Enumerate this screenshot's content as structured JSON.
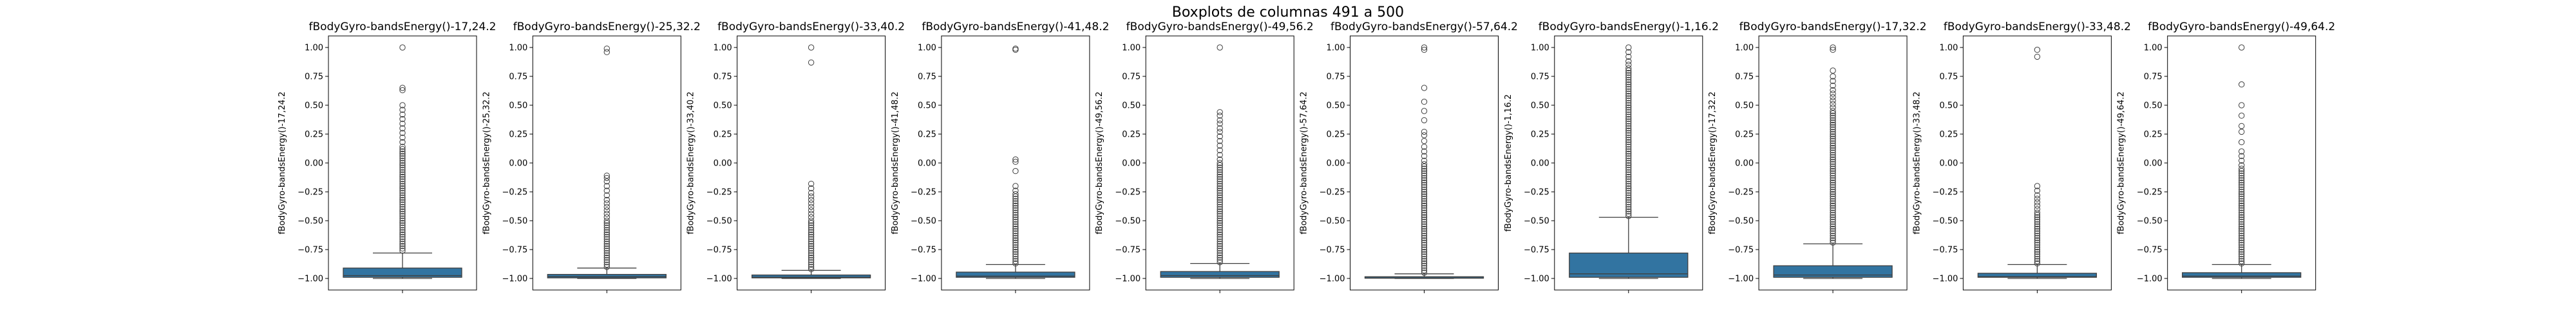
{
  "chart_data": {
    "type": "boxplot",
    "suptitle": "Boxplots de columnas 491 a 500",
    "box_color": "#3274a1",
    "yticks": [
      "1.00",
      "0.75",
      "0.50",
      "0.25",
      "0.00",
      "−0.25",
      "−0.50",
      "−0.75",
      "−1.00"
    ],
    "ytick_values": [
      1.0,
      0.75,
      0.5,
      0.25,
      0.0,
      -0.25,
      -0.5,
      -0.75,
      -1.0
    ],
    "ylim": [
      -1.1,
      1.1
    ],
    "panels": [
      {
        "title": "fBodyGyro-bandsEnergy()-17,24.2",
        "ylabel": "fBodyGyro-bandsEnergy()-17,24.2",
        "whisker_low": -1.0,
        "q1": -0.99,
        "median": -0.975,
        "q3": -0.91,
        "whisker_high": -0.78,
        "outliers": [
          -0.76,
          -0.74,
          -0.72,
          -0.7,
          -0.68,
          -0.66,
          -0.64,
          -0.62,
          -0.6,
          -0.58,
          -0.56,
          -0.54,
          -0.52,
          -0.5,
          -0.48,
          -0.46,
          -0.44,
          -0.42,
          -0.4,
          -0.38,
          -0.36,
          -0.34,
          -0.32,
          -0.3,
          -0.28,
          -0.26,
          -0.24,
          -0.22,
          -0.2,
          -0.18,
          -0.16,
          -0.14,
          -0.12,
          -0.1,
          -0.08,
          -0.06,
          -0.04,
          -0.02,
          0.0,
          0.02,
          0.04,
          0.06,
          0.08,
          0.1,
          0.12,
          0.14,
          0.18,
          0.22,
          0.26,
          0.3,
          0.34,
          0.38,
          0.42,
          0.46,
          0.5,
          0.63,
          0.65,
          1.0
        ]
      },
      {
        "title": "fBodyGyro-bandsEnergy()-25,32.2",
        "ylabel": "fBodyGyro-bandsEnergy()-25,32.2",
        "whisker_low": -1.0,
        "q1": -0.995,
        "median": -0.985,
        "q3": -0.965,
        "whisker_high": -0.91,
        "outliers": [
          -0.9,
          -0.88,
          -0.86,
          -0.84,
          -0.82,
          -0.8,
          -0.78,
          -0.76,
          -0.74,
          -0.72,
          -0.7,
          -0.68,
          -0.66,
          -0.64,
          -0.62,
          -0.6,
          -0.58,
          -0.56,
          -0.54,
          -0.52,
          -0.5,
          -0.47,
          -0.44,
          -0.41,
          -0.38,
          -0.35,
          -0.32,
          -0.28,
          -0.24,
          -0.2,
          -0.16,
          -0.13,
          -0.11,
          0.96,
          0.99
        ]
      },
      {
        "title": "fBodyGyro-bandsEnergy()-33,40.2",
        "ylabel": "fBodyGyro-bandsEnergy()-33,40.2",
        "whisker_low": -1.0,
        "q1": -0.995,
        "median": -0.99,
        "q3": -0.97,
        "whisker_high": -0.93,
        "outliers": [
          -0.92,
          -0.9,
          -0.88,
          -0.86,
          -0.84,
          -0.82,
          -0.8,
          -0.78,
          -0.76,
          -0.74,
          -0.72,
          -0.7,
          -0.68,
          -0.66,
          -0.64,
          -0.62,
          -0.6,
          -0.58,
          -0.56,
          -0.54,
          -0.52,
          -0.5,
          -0.47,
          -0.44,
          -0.41,
          -0.38,
          -0.35,
          -0.32,
          -0.29,
          -0.26,
          -0.22,
          -0.18,
          0.87,
          1.0
        ]
      },
      {
        "title": "fBodyGyro-bandsEnergy()-41,48.2",
        "ylabel": "fBodyGyro-bandsEnergy()-41,48.2",
        "whisker_low": -1.0,
        "q1": -0.99,
        "median": -0.98,
        "q3": -0.945,
        "whisker_high": -0.88,
        "outliers": [
          -0.87,
          -0.85,
          -0.83,
          -0.81,
          -0.79,
          -0.77,
          -0.75,
          -0.73,
          -0.71,
          -0.69,
          -0.67,
          -0.65,
          -0.63,
          -0.61,
          -0.59,
          -0.57,
          -0.55,
          -0.53,
          -0.51,
          -0.49,
          -0.47,
          -0.45,
          -0.43,
          -0.41,
          -0.39,
          -0.37,
          -0.35,
          -0.33,
          -0.31,
          -0.29,
          -0.27,
          -0.24,
          -0.2,
          -0.07,
          0.01,
          0.03,
          0.98,
          0.99
        ]
      },
      {
        "title": "fBodyGyro-bandsEnergy()-49,56.2",
        "ylabel": "fBodyGyro-bandsEnergy()-49,56.2",
        "whisker_low": -1.0,
        "q1": -0.99,
        "median": -0.975,
        "q3": -0.94,
        "whisker_high": -0.87,
        "outliers": [
          -0.86,
          -0.84,
          -0.82,
          -0.8,
          -0.78,
          -0.76,
          -0.74,
          -0.72,
          -0.7,
          -0.68,
          -0.66,
          -0.64,
          -0.62,
          -0.6,
          -0.58,
          -0.56,
          -0.54,
          -0.52,
          -0.5,
          -0.48,
          -0.46,
          -0.44,
          -0.42,
          -0.4,
          -0.38,
          -0.36,
          -0.34,
          -0.32,
          -0.3,
          -0.28,
          -0.26,
          -0.24,
          -0.22,
          -0.2,
          -0.18,
          -0.16,
          -0.14,
          -0.12,
          -0.1,
          -0.08,
          -0.06,
          -0.04,
          -0.02,
          0.0,
          0.03,
          0.07,
          0.11,
          0.15,
          0.19,
          0.23,
          0.27,
          0.3,
          0.34,
          0.37,
          0.41,
          0.44,
          1.0
        ]
      },
      {
        "title": "fBodyGyro-bandsEnergy()-57,64.2",
        "ylabel": "fBodyGyro-bandsEnergy()-57,64.2",
        "whisker_low": -1.0,
        "q1": -0.998,
        "median": -0.995,
        "q3": -0.985,
        "whisker_high": -0.96,
        "outliers": [
          -0.95,
          -0.93,
          -0.91,
          -0.89,
          -0.87,
          -0.85,
          -0.83,
          -0.81,
          -0.79,
          -0.77,
          -0.75,
          -0.73,
          -0.71,
          -0.69,
          -0.67,
          -0.65,
          -0.63,
          -0.61,
          -0.59,
          -0.57,
          -0.55,
          -0.53,
          -0.51,
          -0.49,
          -0.47,
          -0.45,
          -0.43,
          -0.41,
          -0.39,
          -0.37,
          -0.35,
          -0.33,
          -0.31,
          -0.29,
          -0.27,
          -0.25,
          -0.23,
          -0.21,
          -0.19,
          -0.17,
          -0.15,
          -0.13,
          -0.11,
          -0.09,
          -0.07,
          -0.05,
          -0.03,
          -0.01,
          0.02,
          0.06,
          0.1,
          0.14,
          0.19,
          0.24,
          0.27,
          0.37,
          0.45,
          0.53,
          0.65,
          0.98,
          1.0
        ]
      },
      {
        "title": "fBodyGyro-bandsEnergy()-1,16.2",
        "ylabel": "fBodyGyro-bandsEnergy()-1,16.2",
        "whisker_low": -1.0,
        "q1": -0.99,
        "median": -0.96,
        "q3": -0.78,
        "whisker_high": -0.47,
        "outliers": [
          -0.46,
          -0.44,
          -0.42,
          -0.4,
          -0.38,
          -0.36,
          -0.34,
          -0.32,
          -0.3,
          -0.28,
          -0.26,
          -0.24,
          -0.22,
          -0.2,
          -0.18,
          -0.16,
          -0.14,
          -0.12,
          -0.1,
          -0.08,
          -0.06,
          -0.04,
          -0.02,
          0.0,
          0.02,
          0.04,
          0.06,
          0.08,
          0.1,
          0.12,
          0.14,
          0.16,
          0.18,
          0.2,
          0.22,
          0.24,
          0.26,
          0.28,
          0.3,
          0.32,
          0.34,
          0.36,
          0.38,
          0.4,
          0.42,
          0.44,
          0.46,
          0.48,
          0.5,
          0.52,
          0.54,
          0.56,
          0.58,
          0.6,
          0.62,
          0.64,
          0.66,
          0.68,
          0.7,
          0.72,
          0.74,
          0.76,
          0.78,
          0.8,
          0.82,
          0.85,
          0.88,
          0.92,
          0.96,
          1.0
        ]
      },
      {
        "title": "fBodyGyro-bandsEnergy()-17,32.2",
        "ylabel": "fBodyGyro-bandsEnergy()-17,32.2",
        "whisker_low": -1.0,
        "q1": -0.99,
        "median": -0.97,
        "q3": -0.89,
        "whisker_high": -0.7,
        "outliers": [
          -0.69,
          -0.67,
          -0.65,
          -0.63,
          -0.61,
          -0.59,
          -0.57,
          -0.55,
          -0.53,
          -0.51,
          -0.49,
          -0.47,
          -0.45,
          -0.43,
          -0.41,
          -0.39,
          -0.37,
          -0.35,
          -0.33,
          -0.31,
          -0.29,
          -0.27,
          -0.25,
          -0.23,
          -0.21,
          -0.19,
          -0.17,
          -0.15,
          -0.13,
          -0.11,
          -0.09,
          -0.07,
          -0.05,
          -0.03,
          -0.01,
          0.01,
          0.03,
          0.05,
          0.07,
          0.09,
          0.11,
          0.13,
          0.15,
          0.17,
          0.19,
          0.21,
          0.23,
          0.25,
          0.27,
          0.29,
          0.31,
          0.33,
          0.35,
          0.37,
          0.39,
          0.41,
          0.43,
          0.45,
          0.48,
          0.51,
          0.54,
          0.57,
          0.6,
          0.63,
          0.67,
          0.71,
          0.75,
          0.8,
          0.98,
          1.0
        ]
      },
      {
        "title": "fBodyGyro-bandsEnergy()-33,48.2",
        "ylabel": "fBodyGyro-bandsEnergy()-33,48.2",
        "whisker_low": -1.0,
        "q1": -0.99,
        "median": -0.985,
        "q3": -0.955,
        "whisker_high": -0.88,
        "outliers": [
          -0.87,
          -0.85,
          -0.83,
          -0.81,
          -0.79,
          -0.77,
          -0.75,
          -0.73,
          -0.71,
          -0.69,
          -0.67,
          -0.65,
          -0.63,
          -0.61,
          -0.59,
          -0.57,
          -0.55,
          -0.53,
          -0.51,
          -0.49,
          -0.47,
          -0.45,
          -0.43,
          -0.4,
          -0.37,
          -0.34,
          -0.31,
          -0.28,
          -0.24,
          -0.2,
          0.92,
          0.98
        ]
      },
      {
        "title": "fBodyGyro-bandsEnergy()-49,64.2",
        "ylabel": "fBodyGyro-bandsEnergy()-49,64.2",
        "whisker_low": -1.0,
        "q1": -0.99,
        "median": -0.98,
        "q3": -0.95,
        "whisker_high": -0.88,
        "outliers": [
          -0.87,
          -0.85,
          -0.83,
          -0.81,
          -0.79,
          -0.77,
          -0.75,
          -0.73,
          -0.71,
          -0.69,
          -0.67,
          -0.65,
          -0.63,
          -0.61,
          -0.59,
          -0.57,
          -0.55,
          -0.53,
          -0.51,
          -0.49,
          -0.47,
          -0.45,
          -0.43,
          -0.41,
          -0.39,
          -0.37,
          -0.35,
          -0.33,
          -0.31,
          -0.29,
          -0.27,
          -0.25,
          -0.23,
          -0.21,
          -0.19,
          -0.17,
          -0.15,
          -0.13,
          -0.11,
          -0.09,
          -0.07,
          -0.05,
          -0.02,
          0.02,
          0.06,
          0.1,
          0.18,
          0.27,
          0.32,
          0.41,
          0.5,
          0.68,
          1.0
        ]
      }
    ]
  }
}
